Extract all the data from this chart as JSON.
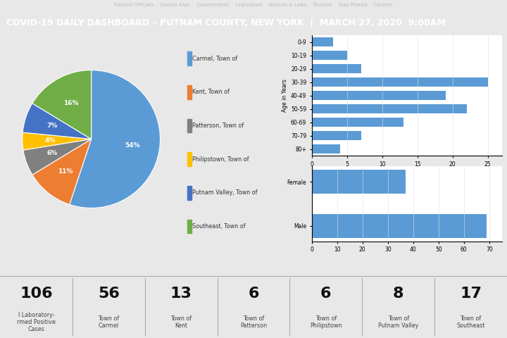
{
  "title": "COVID-19 DAILY DASHBOARD – PUTNAM COUNTY, NEW YORK  |  MARCH 27, 2020  9:00AM",
  "nav_bar_color": "#444444",
  "nav_bar_text": "Elected Officials    County Exec    Departments    Legislature    Notices & Laws    Tourism    Stay Posted    Careers",
  "header_bg": "#333333",
  "header_text_color": "#ffffff",
  "main_bg": "#e8e8e8",
  "pie_labels": [
    "Carmel, Town of",
    "Kent, Town of",
    "Patterson, Town of",
    "Philipstown, Town of",
    "Putnam Valley, Town of",
    "Southeast, Town of"
  ],
  "pie_values": [
    54,
    11,
    6,
    4,
    7,
    16
  ],
  "pie_colors": [
    "#5b9bd5",
    "#ed7d31",
    "#808080",
    "#ffc000",
    "#4472c4",
    "#70ad47"
  ],
  "pie_pct_colors": [
    "white",
    "white",
    "white",
    "white",
    "white",
    "white"
  ],
  "pie_label_pcts": [
    "54%",
    "11%",
    "6%",
    "4%",
    "7%",
    "16%"
  ],
  "age_labels": [
    "80+",
    "70-79",
    "60-69",
    "50-59",
    "40-49",
    "30-39",
    "20-29",
    "10-19",
    "0-9"
  ],
  "age_values": [
    4,
    7,
    13,
    22,
    19,
    25,
    7,
    5,
    3
  ],
  "age_bar_color": "#5b9bd5",
  "gender_labels": [
    "Female",
    "Male"
  ],
  "gender_values": [
    37,
    69
  ],
  "gender_bar_color": "#5b9bd5",
  "stats": [
    {
      "number": "106",
      "label": "l Laboratory-\nrmed Positive\nCases"
    },
    {
      "number": "56",
      "label": "Town of\nCarmel"
    },
    {
      "number": "13",
      "label": "Town of\nKent"
    },
    {
      "number": "6",
      "label": "Town of\nPatterson"
    },
    {
      "number": "6",
      "label": "Town of\nPhilipstown"
    },
    {
      "number": "8",
      "label": "Town of\nPutnam Valley"
    },
    {
      "number": "17",
      "label": "Town of\nSoutheast"
    }
  ],
  "stats_bg": "#ffffff",
  "bar_bg": "#ffffff",
  "left_panel_bg": "#f5f5f5"
}
